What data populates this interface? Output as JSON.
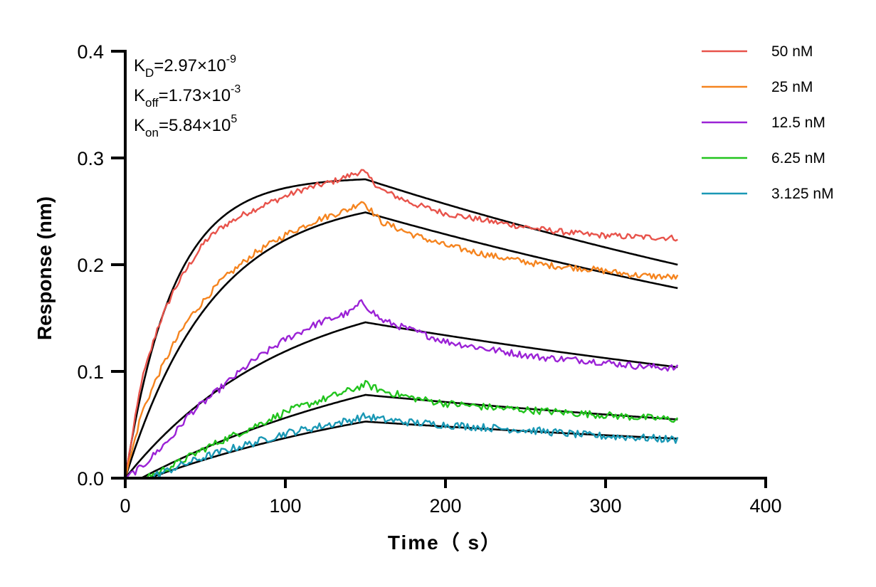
{
  "chart_data": {
    "type": "line",
    "title": "",
    "xlabel": "Time（ s）",
    "ylabel": "Response (nm)",
    "xlim": [
      0,
      400
    ],
    "ylim": [
      0,
      0.4
    ],
    "x_ticks": [
      "0",
      "100",
      "200",
      "300",
      "400"
    ],
    "y_ticks": [
      "0.0",
      "0.1",
      "0.2",
      "0.3",
      "0.4"
    ],
    "grid": false,
    "legend_position": "top-right",
    "association_end_s": 150,
    "end_s": 345,
    "annotations": [
      {
        "name": "kd",
        "base": "K",
        "sub": "D",
        "value": "=2.97×10",
        "exp": "-9"
      },
      {
        "name": "koff",
        "base": "K",
        "sub": "off",
        "value": "=1.73×10",
        "exp": "-3"
      },
      {
        "name": "kon",
        "base": "K",
        "sub": "on",
        "value": "=5.84×10",
        "exp": "5"
      }
    ],
    "series": [
      {
        "name": "50 nM",
        "color": "#E8534B",
        "start_s": 0,
        "data_points": [
          [
            0,
            0
          ],
          [
            10,
            0.09
          ],
          [
            20,
            0.14
          ],
          [
            30,
            0.175
          ],
          [
            40,
            0.2
          ],
          [
            50,
            0.222
          ],
          [
            60,
            0.235
          ],
          [
            75,
            0.248
          ],
          [
            90,
            0.258
          ],
          [
            110,
            0.27
          ],
          [
            130,
            0.278
          ],
          [
            148,
            0.288
          ],
          [
            160,
            0.27
          ],
          [
            180,
            0.257
          ],
          [
            200,
            0.248
          ],
          [
            230,
            0.24
          ],
          [
            260,
            0.233
          ],
          [
            290,
            0.228
          ],
          [
            320,
            0.226
          ],
          [
            345,
            0.225
          ]
        ],
        "fit_peak": 0.28,
        "fit_end": 0.2
      },
      {
        "name": "25 nM",
        "color": "#F5841F",
        "start_s": 0,
        "data_points": [
          [
            0,
            0
          ],
          [
            10,
            0.06
          ],
          [
            20,
            0.095
          ],
          [
            30,
            0.125
          ],
          [
            40,
            0.15
          ],
          [
            50,
            0.168
          ],
          [
            60,
            0.185
          ],
          [
            80,
            0.21
          ],
          [
            100,
            0.228
          ],
          [
            120,
            0.242
          ],
          [
            140,
            0.252
          ],
          [
            148,
            0.26
          ],
          [
            160,
            0.24
          ],
          [
            180,
            0.228
          ],
          [
            200,
            0.218
          ],
          [
            230,
            0.208
          ],
          [
            260,
            0.2
          ],
          [
            290,
            0.196
          ],
          [
            320,
            0.19
          ],
          [
            345,
            0.188
          ]
        ],
        "fit_peak": 0.249,
        "fit_end": 0.178
      },
      {
        "name": "12.5 nM",
        "color": "#9B22D6",
        "start_s": 0,
        "data_points": [
          [
            0,
            0
          ],
          [
            10,
            0.01
          ],
          [
            20,
            0.025
          ],
          [
            30,
            0.04
          ],
          [
            40,
            0.06
          ],
          [
            50,
            0.072
          ],
          [
            60,
            0.085
          ],
          [
            80,
            0.11
          ],
          [
            100,
            0.13
          ],
          [
            120,
            0.145
          ],
          [
            140,
            0.155
          ],
          [
            148,
            0.165
          ],
          [
            160,
            0.148
          ],
          [
            180,
            0.138
          ],
          [
            200,
            0.128
          ],
          [
            230,
            0.12
          ],
          [
            260,
            0.113
          ],
          [
            290,
            0.11
          ],
          [
            320,
            0.105
          ],
          [
            345,
            0.103
          ]
        ],
        "fit_peak": 0.146,
        "fit_end": 0.104
      },
      {
        "name": "6.25 nM",
        "color": "#22C41E",
        "start_s": 10,
        "data_points": [
          [
            10,
            0
          ],
          [
            20,
            0.005
          ],
          [
            30,
            0.012
          ],
          [
            40,
            0.02
          ],
          [
            50,
            0.028
          ],
          [
            60,
            0.035
          ],
          [
            80,
            0.048
          ],
          [
            100,
            0.062
          ],
          [
            120,
            0.072
          ],
          [
            140,
            0.082
          ],
          [
            150,
            0.088
          ],
          [
            160,
            0.082
          ],
          [
            180,
            0.075
          ],
          [
            200,
            0.07
          ],
          [
            230,
            0.066
          ],
          [
            260,
            0.063
          ],
          [
            290,
            0.06
          ],
          [
            320,
            0.057
          ],
          [
            345,
            0.055
          ]
        ],
        "fit_peak": 0.078,
        "fit_end": 0.055
      },
      {
        "name": "3.125 nM",
        "color": "#1A98B5",
        "start_s": 15,
        "data_points": [
          [
            15,
            0
          ],
          [
            25,
            0.006
          ],
          [
            35,
            0.012
          ],
          [
            50,
            0.02
          ],
          [
            65,
            0.027
          ],
          [
            80,
            0.033
          ],
          [
            100,
            0.042
          ],
          [
            120,
            0.048
          ],
          [
            140,
            0.054
          ],
          [
            150,
            0.058
          ],
          [
            160,
            0.055
          ],
          [
            180,
            0.052
          ],
          [
            200,
            0.05
          ],
          [
            230,
            0.047
          ],
          [
            260,
            0.044
          ],
          [
            290,
            0.04
          ],
          [
            320,
            0.038
          ],
          [
            345,
            0.036
          ]
        ],
        "fit_peak": 0.053,
        "fit_end": 0.037
      }
    ]
  }
}
